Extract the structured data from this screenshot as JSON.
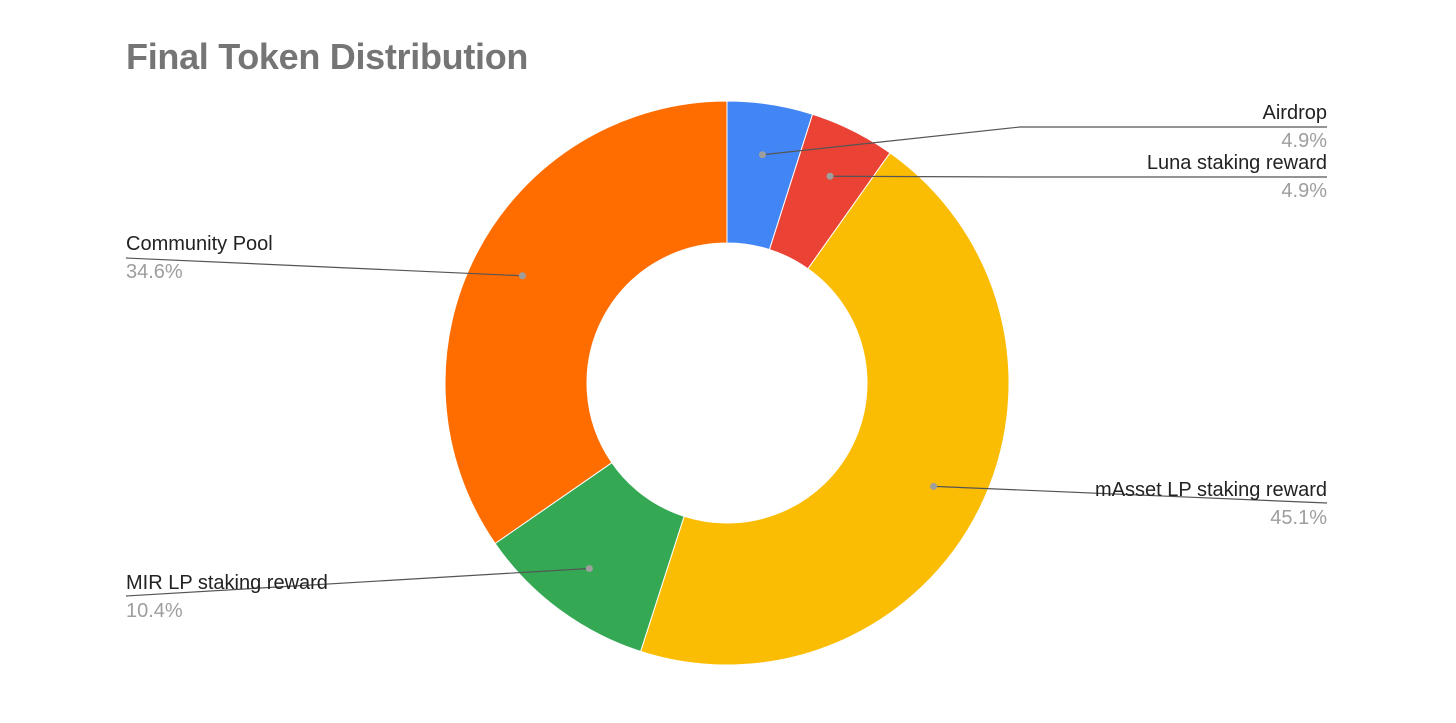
{
  "chart_data": {
    "type": "pie",
    "donut": true,
    "title": "Final Token Distribution",
    "legend": "labels-outside",
    "slices": [
      {
        "label": "Airdrop",
        "value": 4.9,
        "display": "4.9%",
        "color": "#4285f4"
      },
      {
        "label": "Luna staking reward",
        "value": 4.9,
        "display": "4.9%",
        "color": "#ea4335"
      },
      {
        "label": "mAsset LP staking reward",
        "value": 45.1,
        "display": "45.1%",
        "color": "#fbbc04"
      },
      {
        "label": "MIR LP staking reward",
        "value": 10.4,
        "display": "10.4%",
        "color": "#34a853"
      },
      {
        "label": "Community Pool",
        "value": 34.6,
        "display": "34.6%",
        "color": "#ff6d01"
      }
    ]
  }
}
